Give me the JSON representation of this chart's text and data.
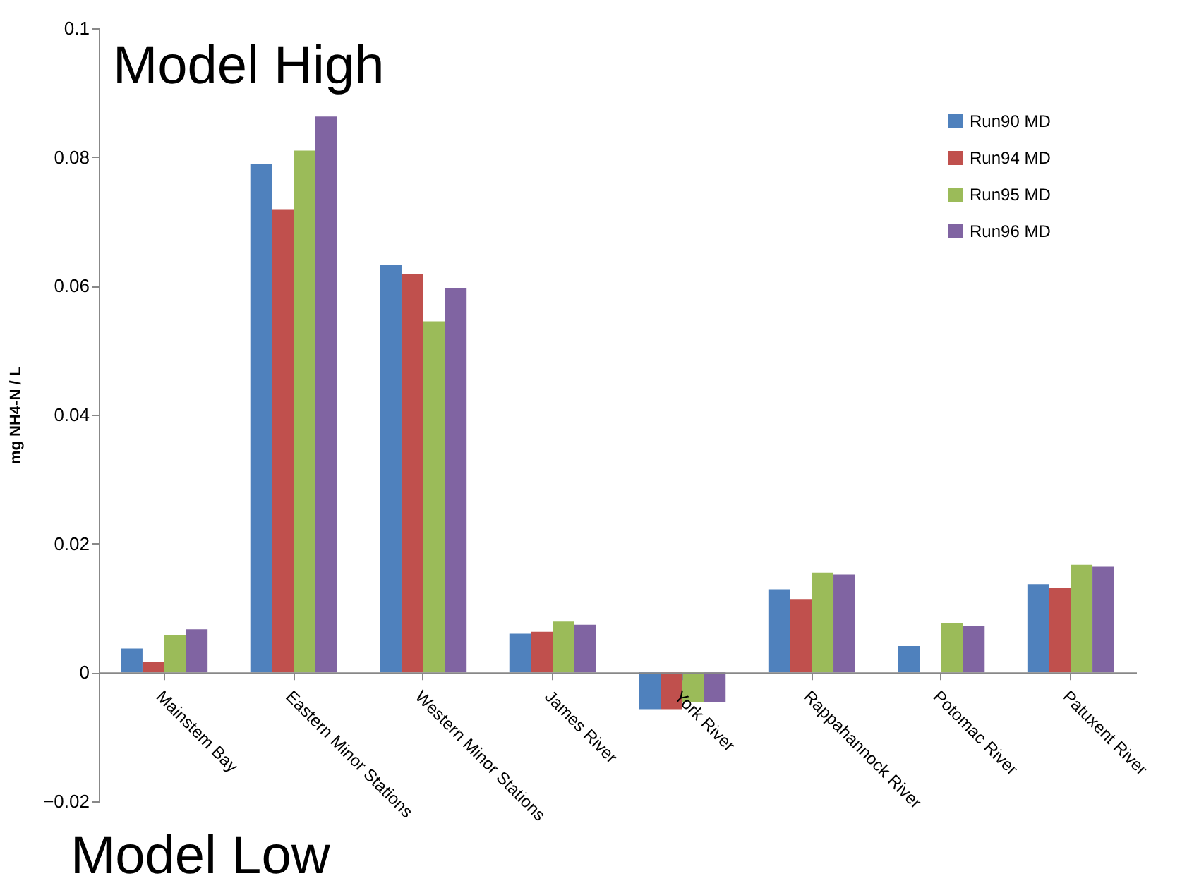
{
  "chart_data": {
    "type": "bar",
    "ylabel": "mg NH4-N / L",
    "categories": [
      "Mainstem Bay",
      "Eastern Minor Stations",
      "Western Minor Stations",
      "James River",
      "York River",
      "Rappahannock River",
      "Potomac River",
      "Patuxent River"
    ],
    "series": [
      {
        "name": "Run90 MD",
        "color": "#4f81bd",
        "values": [
          0.0037,
          0.0789,
          0.0632,
          0.006,
          -0.0057,
          0.0129,
          0.0041,
          0.0137
        ]
      },
      {
        "name": "Run94 MD",
        "color": "#c0504d",
        "values": [
          0.0016,
          0.0718,
          0.0618,
          0.0063,
          -0.0057,
          0.0114,
          null,
          0.0131
        ]
      },
      {
        "name": "Run95 MD",
        "color": "#9bbb59",
        "values": [
          0.0058,
          0.081,
          0.0545,
          0.0079,
          -0.0046,
          0.0155,
          0.0077,
          0.0167
        ]
      },
      {
        "name": "Run96 MD",
        "color": "#8064a2",
        "values": [
          0.0067,
          0.0863,
          0.0597,
          0.0074,
          -0.0046,
          0.0152,
          0.0072,
          0.0164
        ]
      }
    ],
    "ylim": [
      -0.02,
      0.1
    ],
    "yticks": [
      -0.02,
      0,
      0.02,
      0.04,
      0.06,
      0.08,
      0.1
    ],
    "grid": false,
    "legend": "top right",
    "annotations": [
      "Model High",
      "Model Low"
    ]
  }
}
